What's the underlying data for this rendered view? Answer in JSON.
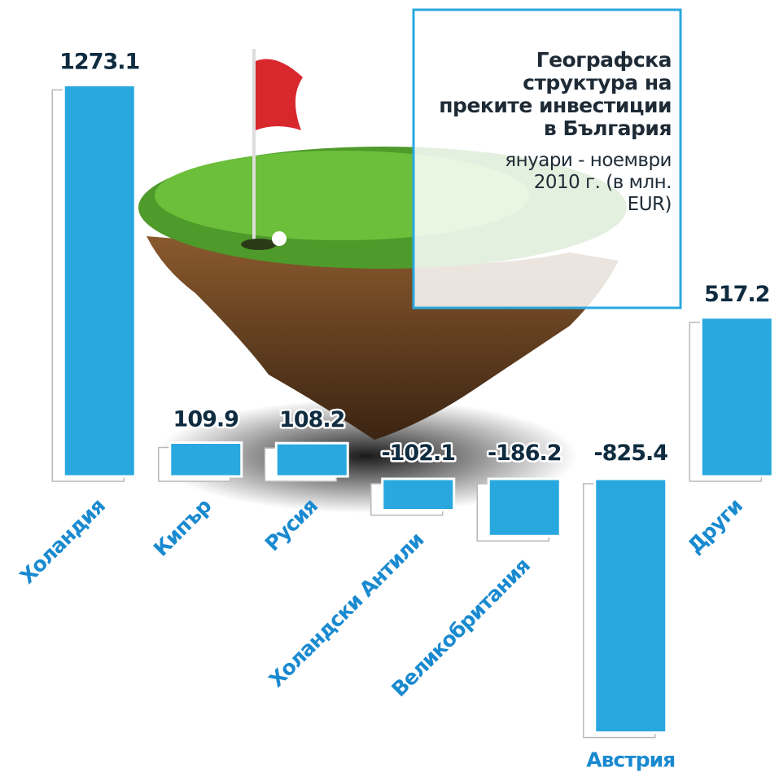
{
  "chart_data": {
    "type": "bar",
    "title": "Географска структура на преките инвестиции в България",
    "subtitle": "януари - ноември 2010 г. (в млн. EUR)",
    "categories": [
      "Холандия",
      "Кипър",
      "Русия",
      "Холандски Антили",
      "Великобритания",
      "Австрия",
      "Други"
    ],
    "values": [
      1273.1,
      109.9,
      108.2,
      -102.1,
      -186.2,
      -825.4,
      517.2
    ],
    "color": "#29a8e0"
  }
}
